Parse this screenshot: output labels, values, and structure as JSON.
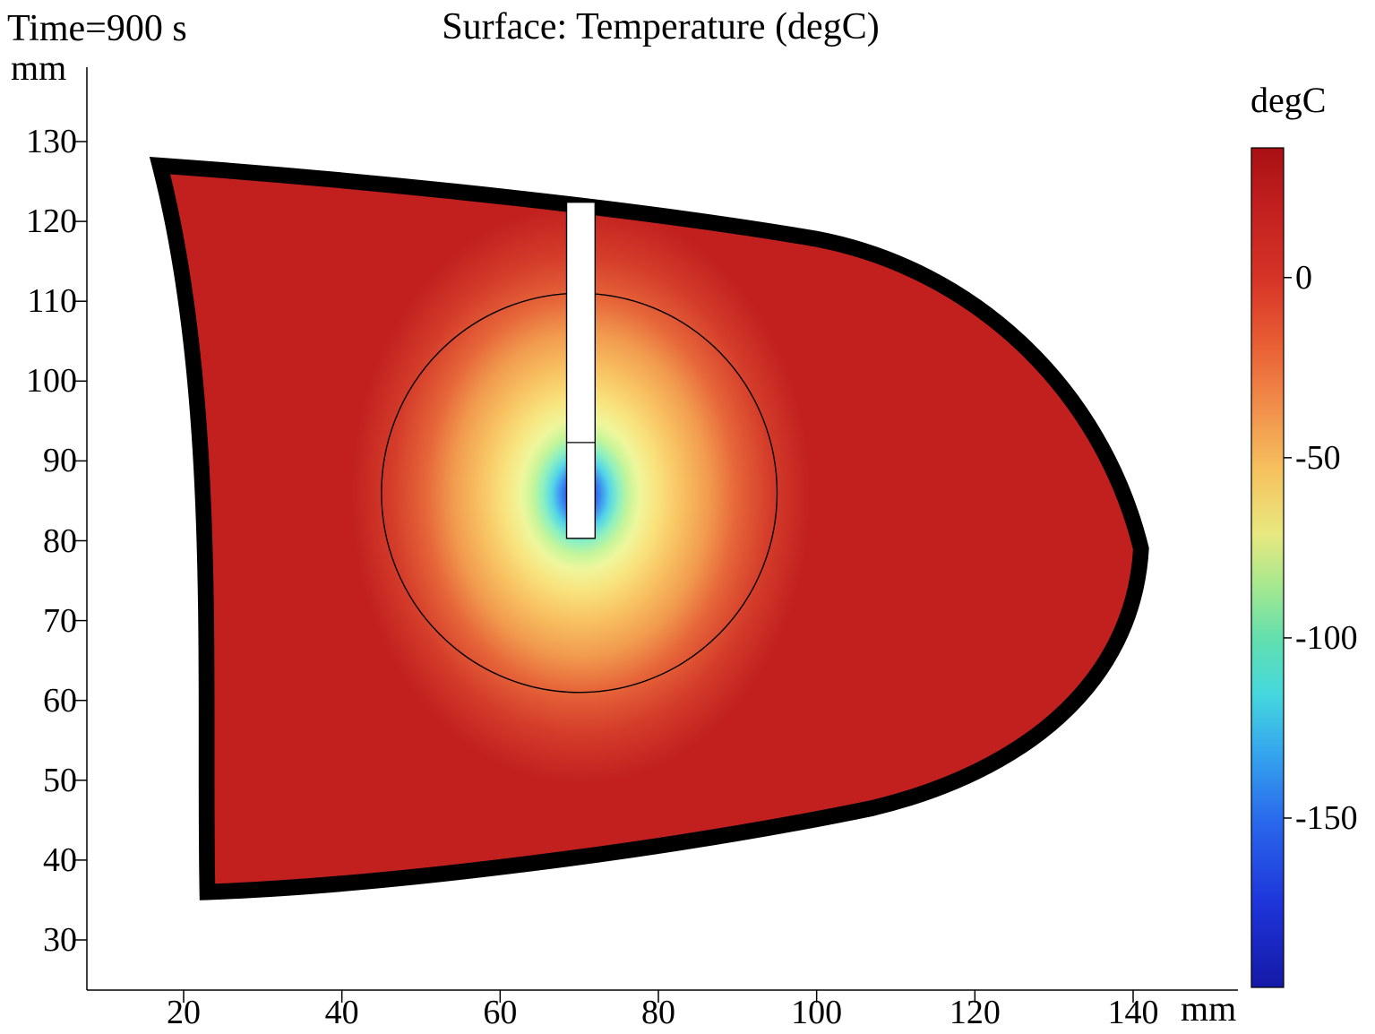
{
  "chart_data": {
    "type": "heatmap",
    "title": "Surface: Temperature (degC)",
    "time_label": "Time=900 s",
    "axis": {
      "x_unit": "mm",
      "y_unit": "mm",
      "x_ticks": [
        20,
        40,
        60,
        80,
        100,
        120,
        140
      ],
      "y_ticks": [
        130,
        120,
        110,
        100,
        90,
        80,
        70,
        60,
        50,
        40,
        30
      ],
      "x_range_mm": [
        8,
        148
      ],
      "y_range_mm": [
        24,
        138
      ],
      "grid": false
    },
    "colorbar": {
      "unit": "degC",
      "ticks": [
        0,
        -50,
        -100,
        -150
      ],
      "value_max_degC": 36,
      "value_min_degC": -197,
      "colormap": "rainbow-jet",
      "position": "right",
      "stops": [
        {
          "pos": 0.0,
          "color": "#a81114"
        },
        {
          "pos": 0.07,
          "color": "#c1201f"
        },
        {
          "pos": 0.155,
          "color": "#d63427"
        },
        {
          "pos": 0.23,
          "color": "#e85c33"
        },
        {
          "pos": 0.31,
          "color": "#f18f4b"
        },
        {
          "pos": 0.385,
          "color": "#f6c25e"
        },
        {
          "pos": 0.46,
          "color": "#e8e87f"
        },
        {
          "pos": 0.52,
          "color": "#a8e88e"
        },
        {
          "pos": 0.585,
          "color": "#62dfae"
        },
        {
          "pos": 0.65,
          "color": "#45d8dd"
        },
        {
          "pos": 0.72,
          "color": "#35a6ee"
        },
        {
          "pos": 0.8,
          "color": "#2a6aec"
        },
        {
          "pos": 0.9,
          "color": "#1e35da"
        },
        {
          "pos": 1.0,
          "color": "#1519a6"
        }
      ]
    },
    "field": {
      "description": "Cryoablation simulation at t=900 s: tissue cross-section at body temperature (~37 degC, red). A cryoprobe inserted from the top cools the tissue around its active tip to about -190 degC; temperature rises radially from the probe tip through blue, cyan, green, yellow and orange bands back to red at the circular treatment-region boundary.",
      "tissue_temp_degC": 37,
      "min_temp_degC": -190,
      "tissue_color": "#c1201f",
      "tissue_outline_mm": [
        [
          17,
          127
        ],
        [
          100,
          118
        ],
        [
          141,
          79
        ],
        [
          107,
          46.5
        ],
        [
          23,
          36
        ]
      ],
      "iceball_circle": {
        "cx_mm": 70,
        "cy_mm": 86,
        "r_mm": 25
      },
      "probe": {
        "x_min_mm": 68.4,
        "x_max_mm": 72.0,
        "y_min_mm": 80.3,
        "y_max_mm": 122.4,
        "tip_divider_y_mm": 92.3,
        "fill": "#ffffff"
      },
      "cold_spot": {
        "cx_mm": 70.2,
        "cy_mm": 85.8,
        "r_mm": 29,
        "y_elongation": 1.25,
        "stops": [
          {
            "pos": 0.0,
            "color": "#161bc8"
          },
          {
            "pos": 0.045,
            "color": "#2342e8"
          },
          {
            "pos": 0.085,
            "color": "#3a8af2"
          },
          {
            "pos": 0.125,
            "color": "#54d6e8"
          },
          {
            "pos": 0.165,
            "color": "#8cf0c0"
          },
          {
            "pos": 0.21,
            "color": "#c6f59a"
          },
          {
            "pos": 0.26,
            "color": "#eff69c"
          },
          {
            "pos": 0.335,
            "color": "#f8e37d"
          },
          {
            "pos": 0.44,
            "color": "#f8c161"
          },
          {
            "pos": 0.56,
            "color": "#f19a4e"
          },
          {
            "pos": 0.68,
            "color": "#e66539"
          },
          {
            "pos": 0.83,
            "color": "#d43c2a"
          },
          {
            "pos": 1.0,
            "color": "#c1201f"
          }
        ]
      }
    }
  }
}
